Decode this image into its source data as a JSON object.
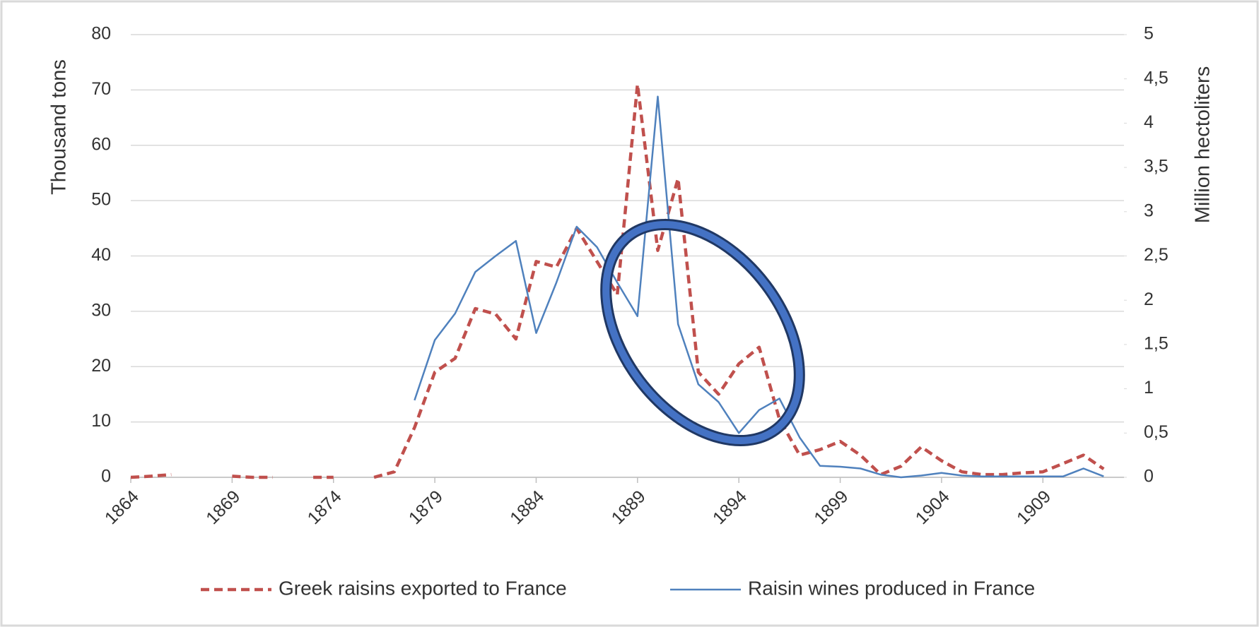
{
  "chart_data": {
    "type": "line",
    "y_label": "Thousand tons",
    "y2_label": "Million hectoliters",
    "x": [
      1864,
      1865,
      1866,
      1867,
      1868,
      1869,
      1870,
      1871,
      1872,
      1873,
      1874,
      1875,
      1876,
      1877,
      1878,
      1879,
      1880,
      1881,
      1882,
      1883,
      1884,
      1885,
      1886,
      1887,
      1888,
      1889,
      1890,
      1891,
      1892,
      1893,
      1894,
      1895,
      1896,
      1897,
      1898,
      1899,
      1900,
      1901,
      1902,
      1903,
      1904,
      1905,
      1906,
      1907,
      1908,
      1909,
      1910,
      1911,
      1912
    ],
    "xlim": [
      1864,
      1913
    ],
    "xticks": [
      1864,
      1869,
      1874,
      1879,
      1884,
      1889,
      1894,
      1899,
      1904,
      1909
    ],
    "ylim": [
      0,
      80
    ],
    "yticks": [
      0,
      10,
      20,
      30,
      40,
      50,
      60,
      70,
      80
    ],
    "y2lim": [
      0,
      5
    ],
    "y2ticks": [
      0,
      {
        "value": 0.5,
        "label": "0,5"
      },
      1,
      {
        "value": 1.5,
        "label": "1,5"
      },
      2,
      {
        "value": 2.5,
        "label": "2,5"
      },
      3,
      {
        "value": 3.5,
        "label": "3,5"
      },
      4,
      {
        "value": 4.5,
        "label": "4,5"
      },
      5
    ],
    "grid": true,
    "legend": "bottom",
    "series": [
      {
        "name": "Greek raisins exported to France",
        "color": "#c0504d",
        "dash": true,
        "values": [
          0,
          0.2,
          0.5,
          null,
          null,
          0.2,
          0,
          0,
          null,
          0,
          0,
          null,
          0,
          1,
          9,
          19,
          21.5,
          30.5,
          29.5,
          25,
          39,
          38,
          45,
          39,
          33,
          71,
          41,
          54,
          19,
          15,
          20.5,
          23.5,
          10.5,
          4,
          5,
          6.5,
          4,
          0.5,
          2,
          5.5,
          3,
          1,
          0.5,
          0.5,
          0.8,
          1,
          2.5,
          4,
          1.5
        ]
      },
      {
        "name": "Raisin wines produced in France",
        "color": "#4f81bd",
        "axis": "y2",
        "values": [
          null,
          null,
          null,
          null,
          null,
          null,
          null,
          null,
          null,
          null,
          null,
          null,
          null,
          null,
          0.87,
          1.55,
          1.85,
          2.32,
          2.5,
          2.67,
          1.63,
          2.2,
          2.83,
          2.6,
          2.2,
          1.82,
          4.3,
          1.73,
          1.05,
          0.85,
          0.5,
          0.76,
          0.89,
          0.45,
          0.13,
          0.12,
          0.1,
          0.03,
          0,
          0.02,
          0.05,
          0.02,
          0.01,
          0.01,
          0.01,
          0.01,
          0.01,
          0.1,
          0.01
        ]
      }
    ]
  }
}
